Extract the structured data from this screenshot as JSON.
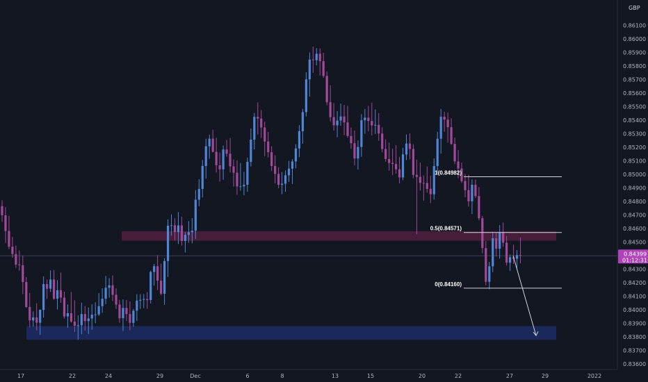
{
  "chart_data": {
    "type": "candlestick",
    "currency": "GBP",
    "y_ticks": [
      "0.86100",
      "0.86000",
      "0.85900",
      "0.85800",
      "0.85700",
      "0.85600",
      "0.85500",
      "0.85400",
      "0.85300",
      "0.85200",
      "0.85100",
      "0.85000",
      "0.84900",
      "0.84800",
      "0.84700",
      "0.84600",
      "0.84500",
      "0.84300",
      "0.84200",
      "0.84100",
      "0.84000",
      "0.83900",
      "0.83800",
      "0.83700",
      "0.83600"
    ],
    "x_ticks": [
      "17",
      "22",
      "24",
      "29",
      "Dec",
      "6",
      "8",
      "13",
      "15",
      "20",
      "22",
      "27",
      "29",
      "2022"
    ],
    "ylim": [
      0.8357,
      0.8623
    ],
    "current_price": "0.84399",
    "countdown": "01:12:31",
    "fib_levels": [
      {
        "label": "1(0.84982)",
        "value": 0.84982
      },
      {
        "label": "0.5(0.84571)",
        "value": 0.84571
      },
      {
        "label": "0(0.84160)",
        "value": 0.8416
      }
    ],
    "zones": [
      {
        "name": "resistance-zone",
        "from": 0.8451,
        "to": 0.8458,
        "color": "#4a1f3c"
      },
      {
        "name": "support-zone",
        "from": 0.8378,
        "to": 0.8388,
        "color": "#1a2a5e"
      }
    ],
    "candles": [
      [
        0.84765,
        0.84809,
        0.84648,
        0.84698
      ],
      [
        0.84698,
        0.84758,
        0.84494,
        0.84582
      ],
      [
        0.84582,
        0.84694,
        0.84449,
        0.84466
      ],
      [
        0.84466,
        0.84538,
        0.84385,
        0.84412
      ],
      [
        0.84412,
        0.84474,
        0.84311,
        0.84334
      ],
      [
        0.84334,
        0.84439,
        0.84289,
        0.84329
      ],
      [
        0.84329,
        0.84401,
        0.84116,
        0.84205
      ],
      [
        0.84205,
        0.84242,
        0.84013,
        0.84021
      ],
      [
        0.84021,
        0.84125,
        0.83871,
        0.83922
      ],
      [
        0.83922,
        0.83988,
        0.83877,
        0.83944
      ],
      [
        0.83944,
        0.84048,
        0.83848,
        0.83905
      ],
      [
        0.83905,
        0.84004,
        0.83815,
        0.84
      ],
      [
        0.84,
        0.84247,
        0.83943,
        0.8419
      ],
      [
        0.8419,
        0.84224,
        0.84081,
        0.84156
      ],
      [
        0.84156,
        0.84291,
        0.84132,
        0.84224
      ],
      [
        0.84224,
        0.84294,
        0.84074,
        0.84082
      ],
      [
        0.84082,
        0.84219,
        0.84003,
        0.84144
      ],
      [
        0.84144,
        0.84275,
        0.84052,
        0.8409
      ],
      [
        0.8409,
        0.84134,
        0.83935,
        0.83951
      ],
      [
        0.83951,
        0.8404,
        0.83868,
        0.83975
      ],
      [
        0.83975,
        0.84132,
        0.83905,
        0.83913
      ],
      [
        0.83913,
        0.84071,
        0.83837,
        0.83883
      ],
      [
        0.83883,
        0.83959,
        0.83779,
        0.83886
      ],
      [
        0.83886,
        0.84053,
        0.8382,
        0.83969
      ],
      [
        0.83969,
        0.84028,
        0.83847,
        0.83917
      ],
      [
        0.83917,
        0.84017,
        0.83822,
        0.83936
      ],
      [
        0.83936,
        0.84041,
        0.83853,
        0.83964
      ],
      [
        0.83964,
        0.84056,
        0.83902,
        0.83966
      ],
      [
        0.83966,
        0.84123,
        0.83956,
        0.84027
      ],
      [
        0.84027,
        0.84159,
        0.83978,
        0.84082
      ],
      [
        0.84082,
        0.8425,
        0.84042,
        0.84163
      ],
      [
        0.84163,
        0.84234,
        0.8409,
        0.84181
      ],
      [
        0.84181,
        0.84254,
        0.84065,
        0.84111
      ],
      [
        0.84111,
        0.84158,
        0.84007,
        0.84039
      ],
      [
        0.84039,
        0.84074,
        0.83904,
        0.83938
      ],
      [
        0.83938,
        0.84077,
        0.83845,
        0.84014
      ],
      [
        0.84014,
        0.84072,
        0.83917,
        0.83969
      ],
      [
        0.83969,
        0.84061,
        0.83849,
        0.83904
      ],
      [
        0.83904,
        0.84007,
        0.83875,
        0.83994
      ],
      [
        0.83994,
        0.84115,
        0.83918,
        0.84068
      ],
      [
        0.84068,
        0.84115,
        0.84007,
        0.84074
      ],
      [
        0.84074,
        0.84117,
        0.84013,
        0.8408
      ],
      [
        0.8408,
        0.84131,
        0.84008,
        0.84072
      ],
      [
        0.84072,
        0.84289,
        0.84046,
        0.8428
      ],
      [
        0.8428,
        0.84339,
        0.84179,
        0.84322
      ],
      [
        0.84322,
        0.84403,
        0.84146,
        0.84215
      ],
      [
        0.84215,
        0.8434,
        0.84108,
        0.84119
      ],
      [
        0.84119,
        0.84381,
        0.84037,
        0.8436
      ],
      [
        0.8436,
        0.84668,
        0.84244,
        0.84621
      ],
      [
        0.84621,
        0.84705,
        0.84547,
        0.84624
      ],
      [
        0.84624,
        0.84676,
        0.84512,
        0.84574
      ],
      [
        0.84574,
        0.84721,
        0.84486,
        0.84623
      ],
      [
        0.84623,
        0.84688,
        0.84475,
        0.84508
      ],
      [
        0.84508,
        0.84575,
        0.84423,
        0.84553
      ],
      [
        0.84553,
        0.84655,
        0.84495,
        0.84573
      ],
      [
        0.84573,
        0.84677,
        0.84491,
        0.84584
      ],
      [
        0.84584,
        0.84884,
        0.84523,
        0.84813
      ],
      [
        0.84813,
        0.84964,
        0.84765,
        0.84892
      ],
      [
        0.84892,
        0.85106,
        0.84829,
        0.85062
      ],
      [
        0.85062,
        0.85263,
        0.84968,
        0.85207
      ],
      [
        0.85207,
        0.85292,
        0.85115,
        0.85263
      ],
      [
        0.85263,
        0.85329,
        0.85162,
        0.85166
      ],
      [
        0.85166,
        0.85269,
        0.85014,
        0.85067
      ],
      [
        0.85067,
        0.85162,
        0.84946,
        0.85037
      ],
      [
        0.85037,
        0.85213,
        0.8496,
        0.85183
      ],
      [
        0.85183,
        0.85253,
        0.8513,
        0.85152
      ],
      [
        0.85152,
        0.85268,
        0.85014,
        0.85059
      ],
      [
        0.85059,
        0.8511,
        0.84909,
        0.85012
      ],
      [
        0.85012,
        0.85101,
        0.84849,
        0.84911
      ],
      [
        0.84911,
        0.85083,
        0.84879,
        0.84911
      ],
      [
        0.84911,
        0.85019,
        0.84846,
        0.84923
      ],
      [
        0.84923,
        0.85123,
        0.84871,
        0.85092
      ],
      [
        0.85092,
        0.85338,
        0.85058,
        0.85256
      ],
      [
        0.85256,
        0.85452,
        0.85184,
        0.85424
      ],
      [
        0.85424,
        0.85531,
        0.85294,
        0.85411
      ],
      [
        0.85411,
        0.85474,
        0.85269,
        0.85346
      ],
      [
        0.85346,
        0.85389,
        0.85134,
        0.85242
      ],
      [
        0.85242,
        0.85313,
        0.85125,
        0.85163
      ],
      [
        0.85163,
        0.85207,
        0.85024,
        0.85061
      ],
      [
        0.85061,
        0.85141,
        0.84933,
        0.85003
      ],
      [
        0.85003,
        0.85052,
        0.84897,
        0.84923
      ],
      [
        0.84923,
        0.85016,
        0.84854,
        0.84931
      ],
      [
        0.84931,
        0.85029,
        0.84871,
        0.84993
      ],
      [
        0.84993,
        0.85099,
        0.84944,
        0.85042
      ],
      [
        0.85042,
        0.85112,
        0.84929,
        0.85095
      ],
      [
        0.85095,
        0.85222,
        0.85044,
        0.85191
      ],
      [
        0.85191,
        0.85363,
        0.85127,
        0.85318
      ],
      [
        0.85318,
        0.85483,
        0.85226,
        0.85459
      ],
      [
        0.85459,
        0.85753,
        0.85427,
        0.85701
      ],
      [
        0.85701,
        0.85899,
        0.85573,
        0.85847
      ],
      [
        0.85847,
        0.85943,
        0.85749,
        0.85842
      ],
      [
        0.85842,
        0.85931,
        0.85804,
        0.8589
      ],
      [
        0.8589,
        0.8593,
        0.8573,
        0.85835
      ],
      [
        0.85835,
        0.85897,
        0.85713,
        0.85726
      ],
      [
        0.85726,
        0.85759,
        0.8551,
        0.85532
      ],
      [
        0.85532,
        0.85657,
        0.8539,
        0.85422
      ],
      [
        0.85422,
        0.85526,
        0.85322,
        0.85362
      ],
      [
        0.85362,
        0.85466,
        0.85274,
        0.85397
      ],
      [
        0.85397,
        0.85522,
        0.85358,
        0.85427
      ],
      [
        0.85427,
        0.85513,
        0.85289,
        0.85383
      ],
      [
        0.85383,
        0.85506,
        0.85271,
        0.85283
      ],
      [
        0.85283,
        0.85345,
        0.85188,
        0.85229
      ],
      [
        0.85229,
        0.85323,
        0.85066,
        0.85117
      ],
      [
        0.85117,
        0.8525,
        0.85035,
        0.85202
      ],
      [
        0.85202,
        0.85444,
        0.85129,
        0.85399
      ],
      [
        0.85399,
        0.85482,
        0.85299,
        0.85418
      ],
      [
        0.85418,
        0.85505,
        0.85318,
        0.85394
      ],
      [
        0.85394,
        0.85529,
        0.85287,
        0.85361
      ],
      [
        0.85361,
        0.85479,
        0.85298,
        0.85365
      ],
      [
        0.85365,
        0.85452,
        0.85247,
        0.85301
      ],
      [
        0.85301,
        0.85346,
        0.85163,
        0.85187
      ],
      [
        0.85187,
        0.85258,
        0.85093,
        0.85113
      ],
      [
        0.85113,
        0.85234,
        0.85027,
        0.85084
      ],
      [
        0.85084,
        0.85189,
        0.84994,
        0.85076
      ],
      [
        0.85076,
        0.85215,
        0.85005,
        0.85037
      ],
      [
        0.85037,
        0.85129,
        0.84933,
        0.84977
      ],
      [
        0.84977,
        0.85196,
        0.84957,
        0.85147
      ],
      [
        0.85147,
        0.85294,
        0.85105,
        0.85227
      ],
      [
        0.85227,
        0.85302,
        0.85111,
        0.85187
      ],
      [
        0.85187,
        0.85223,
        0.84972,
        0.84996
      ],
      [
        0.84996,
        0.85108,
        0.84558,
        0.84981
      ],
      [
        0.84981,
        0.85087,
        0.8488,
        0.84937
      ],
      [
        0.84937,
        0.84991,
        0.84806,
        0.84936
      ],
      [
        0.84936,
        0.85058,
        0.84865,
        0.84893
      ],
      [
        0.84893,
        0.84989,
        0.84788,
        0.84853
      ],
      [
        0.84853,
        0.85117,
        0.84814,
        0.85061
      ],
      [
        0.85061,
        0.85314,
        0.85005,
        0.85263
      ],
      [
        0.85263,
        0.85483,
        0.85153,
        0.85425
      ],
      [
        0.85425,
        0.85462,
        0.85314,
        0.85404
      ],
      [
        0.85404,
        0.85457,
        0.85234,
        0.85348
      ],
      [
        0.85348,
        0.85414,
        0.85216,
        0.85225
      ],
      [
        0.85225,
        0.85271,
        0.85075,
        0.85095
      ],
      [
        0.85095,
        0.8518,
        0.84972,
        0.85043
      ],
      [
        0.85043,
        0.85087,
        0.84937,
        0.8495
      ],
      [
        0.8495,
        0.85003,
        0.84831,
        0.84883
      ],
      [
        0.84883,
        0.84997,
        0.84762,
        0.84801
      ],
      [
        0.84801,
        0.84963,
        0.84706,
        0.84923
      ],
      [
        0.84923,
        0.84961,
        0.84825,
        0.84839
      ],
      [
        0.84839,
        0.84906,
        0.8466,
        0.84676
      ],
      [
        0.84676,
        0.84693,
        0.84417,
        0.84456
      ],
      [
        0.84456,
        0.84509,
        0.84181,
        0.84207
      ],
      [
        0.84207,
        0.84354,
        0.84152,
        0.84321
      ],
      [
        0.84321,
        0.84575,
        0.84278,
        0.84528
      ],
      [
        0.84528,
        0.84568,
        0.84393,
        0.84451
      ],
      [
        0.84451,
        0.84625,
        0.84378,
        0.84569
      ],
      [
        0.84569,
        0.84644,
        0.84465,
        0.84496
      ],
      [
        0.84496,
        0.84545,
        0.84327,
        0.84348
      ],
      [
        0.84348,
        0.84407,
        0.84287,
        0.84388
      ],
      [
        0.84388,
        0.84481,
        0.84338,
        0.84377
      ],
      [
        0.84377,
        0.84441,
        0.84298,
        0.84404
      ],
      [
        0.84404,
        0.84534,
        0.84343,
        0.84399
      ]
    ]
  },
  "projection": {
    "from_price": 0.84399,
    "to_price": 0.8381
  }
}
